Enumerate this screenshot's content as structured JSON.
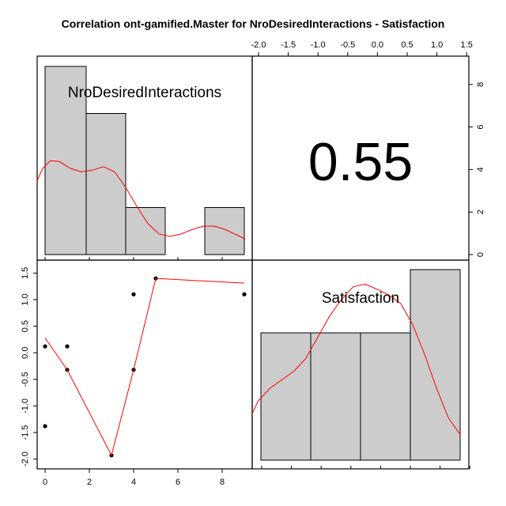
{
  "chart_data": {
    "type": "scatter",
    "title": "Correlation ont-gamified.Master for NroDesiredInteractions - Satisfaction",
    "variables": [
      "NroDesiredInteractions",
      "Satisfaction"
    ],
    "correlation": "0.55",
    "x_ticks": [
      "0",
      "2",
      "4",
      "6",
      "8"
    ],
    "y_ticks": [
      "-2.0",
      "-1.5",
      "-1.0",
      "-0.5",
      "0.0",
      "0.5",
      "1.0",
      "1.5"
    ],
    "top_axis_ticks": [
      "-2.0",
      "-1.5",
      "-1.0",
      "-0.5",
      "0.0",
      "0.5",
      "1.0",
      "1.5"
    ],
    "right_axis_ticks": [
      "0",
      "2",
      "4",
      "6",
      "8"
    ],
    "xlim": [
      -0.1,
      9.4
    ],
    "ylim": [
      -2.02,
      1.58
    ],
    "scatter_points": [
      {
        "x": 0,
        "y": 0.12
      },
      {
        "x": 0,
        "y": -1.38
      },
      {
        "x": 1,
        "y": 0.12
      },
      {
        "x": 1,
        "y": -0.32
      },
      {
        "x": 3,
        "y": -1.93
      },
      {
        "x": 4,
        "y": 1.1
      },
      {
        "x": 4,
        "y": -0.32
      },
      {
        "x": 5,
        "y": 1.4
      },
      {
        "x": 9,
        "y": 1.1
      }
    ],
    "smooth_line": [
      {
        "x": 0,
        "y": 0.28
      },
      {
        "x": 1,
        "y": -0.32
      },
      {
        "x": 3,
        "y": -1.93
      },
      {
        "x": 4,
        "y": -0.32
      },
      {
        "x": 5,
        "y": 1.4
      },
      {
        "x": 9,
        "y": 1.31
      }
    ],
    "hist_1": {
      "name": "NroDesiredInteractions",
      "counts": [
        5.6,
        4.2,
        1.4,
        0,
        1.4
      ],
      "density_curve": [
        [
          0.0,
          4.3
        ],
        [
          0.25,
          5.0
        ],
        [
          0.6,
          5.45
        ],
        [
          1.0,
          5.4
        ],
        [
          1.5,
          5.0
        ],
        [
          2.0,
          4.8
        ],
        [
          2.5,
          4.9
        ],
        [
          3.0,
          5.1
        ],
        [
          3.5,
          4.8
        ],
        [
          4.0,
          3.9
        ],
        [
          4.5,
          2.8
        ],
        [
          5.0,
          1.8
        ],
        [
          5.5,
          1.2
        ],
        [
          6.0,
          1.05
        ],
        [
          6.5,
          1.2
        ],
        [
          7.0,
          1.45
        ],
        [
          7.5,
          1.65
        ],
        [
          8.0,
          1.65
        ],
        [
          8.5,
          1.45
        ],
        [
          9.0,
          1.15
        ],
        [
          9.4,
          0.9
        ]
      ]
    },
    "hist_2": {
      "name": "Satisfaction",
      "counts": [
        1,
        1,
        1,
        1.5
      ],
      "density_curve": [
        [
          -2.0,
          0.55
        ],
        [
          -1.9,
          0.7
        ],
        [
          -1.7,
          0.85
        ],
        [
          -1.5,
          0.95
        ],
        [
          -1.3,
          1.05
        ],
        [
          -1.1,
          1.2
        ],
        [
          -0.9,
          1.45
        ],
        [
          -0.7,
          1.7
        ],
        [
          -0.5,
          1.9
        ],
        [
          -0.3,
          2.05
        ],
        [
          -0.1,
          2.08
        ],
        [
          0.1,
          2.02
        ],
        [
          0.3,
          1.95
        ],
        [
          0.5,
          1.85
        ],
        [
          0.7,
          1.6
        ],
        [
          0.9,
          1.25
        ],
        [
          1.1,
          0.85
        ],
        [
          1.3,
          0.5
        ],
        [
          1.5,
          0.3
        ]
      ]
    },
    "colors": {
      "bar_fill": "#cccccc",
      "line": "#ff0000",
      "point": "#000000"
    }
  }
}
